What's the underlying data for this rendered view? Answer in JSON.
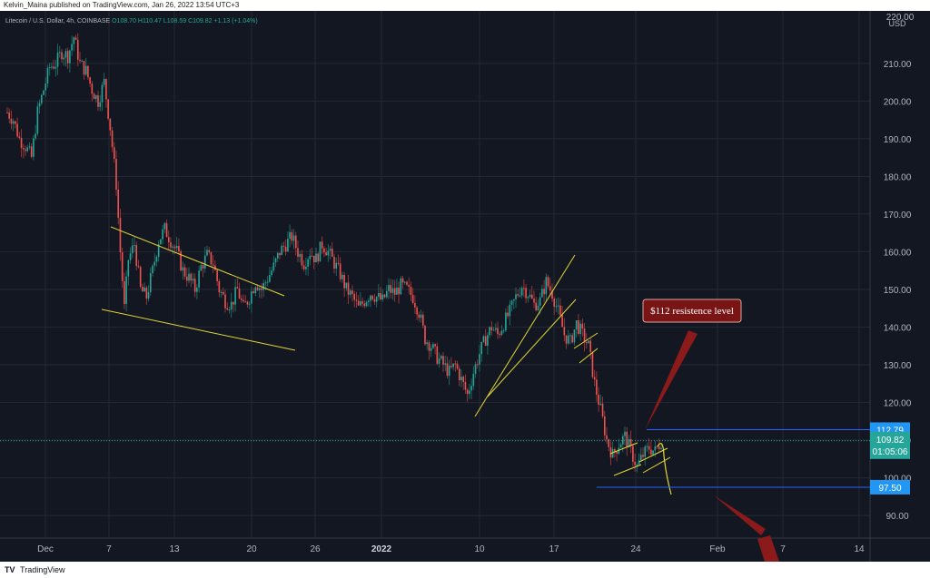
{
  "publisher": "Kelvin_Maina published on TradingView.com, Jan 26, 2022 13:54 UTC+3",
  "footer": {
    "logo": "TV",
    "brand": "TradingView"
  },
  "colors": {
    "background": "#131722",
    "grid": "#242833",
    "up": "#26a69a",
    "down": "#ef5350",
    "wick_up": "#1b7d73",
    "wick_down": "#b63b3b",
    "trendline": "#e3d834",
    "level_line": "#2962ff",
    "callout_fill": "#7a1515",
    "callout_border": "#d9a3a3",
    "arrow": "#8b1a1a",
    "axis_text": "#b2b5be",
    "price_tag_up": "#26a69a",
    "price_tag_level": "#2196f3"
  },
  "chart_data": {
    "type": "candlestick",
    "legend": {
      "symbol": "Litecoin / U.S. Dollar, 4h, COINBASE",
      "open": "O108.70",
      "high": "H110.47",
      "low": "L108.59",
      "close": "C109.82",
      "change": "+1.13 (+1.04%)"
    },
    "currency": "USD",
    "ylim": [
      84,
      222
    ],
    "y_ticks": [
      90,
      100,
      110,
      120,
      130,
      140,
      150,
      160,
      170,
      180,
      190,
      200,
      210
    ],
    "y_tick_labels": [
      "90.00",
      "100.00",
      "110.00",
      "120.00",
      "130.00",
      "140.00",
      "150.00",
      "160.00",
      "170.00",
      "180.00",
      "190.00",
      "200.00",
      "210.00"
    ],
    "top_partial_label": "220.00",
    "x_ticks": [
      "Dec",
      "7",
      "13",
      "20",
      "26",
      "2022",
      "10",
      "17",
      "24",
      "Feb",
      "7",
      "14"
    ],
    "bold_x_ticks": [
      "2022"
    ],
    "price_path": [
      [
        0,
        197
      ],
      [
        3,
        195
      ],
      [
        6,
        190
      ],
      [
        9,
        188
      ],
      [
        12,
        185
      ],
      [
        15,
        197
      ],
      [
        18,
        203
      ],
      [
        21,
        209
      ],
      [
        24,
        210
      ],
      [
        27,
        213
      ],
      [
        30,
        212
      ],
      [
        33,
        217
      ],
      [
        36,
        210
      ],
      [
        39,
        208
      ],
      [
        42,
        203
      ],
      [
        45,
        200
      ],
      [
        48,
        205
      ],
      [
        51,
        193
      ],
      [
        54,
        178
      ],
      [
        56,
        160
      ],
      [
        58,
        145
      ],
      [
        60,
        158
      ],
      [
        63,
        162
      ],
      [
        66,
        150
      ],
      [
        69,
        148
      ],
      [
        72,
        155
      ],
      [
        75,
        163
      ],
      [
        78,
        166
      ],
      [
        81,
        163
      ],
      [
        84,
        160
      ],
      [
        87,
        155
      ],
      [
        90,
        153
      ],
      [
        93,
        150
      ],
      [
        96,
        156
      ],
      [
        99,
        159
      ],
      [
        102,
        157
      ],
      [
        105,
        150
      ],
      [
        108,
        147
      ],
      [
        111,
        146
      ],
      [
        114,
        150
      ],
      [
        117,
        145
      ],
      [
        120,
        148
      ],
      [
        123,
        152
      ],
      [
        126,
        150
      ],
      [
        129,
        153
      ],
      [
        132,
        156
      ],
      [
        135,
        160
      ],
      [
        138,
        162
      ],
      [
        141,
        164
      ],
      [
        144,
        160
      ],
      [
        147,
        157
      ],
      [
        150,
        160
      ],
      [
        153,
        158
      ],
      [
        156,
        162
      ],
      [
        159,
        160
      ],
      [
        162,
        157
      ],
      [
        165,
        154
      ],
      [
        168,
        150
      ],
      [
        171,
        148
      ],
      [
        174,
        145
      ],
      [
        177,
        147
      ],
      [
        180,
        149
      ],
      [
        183,
        148
      ],
      [
        186,
        147
      ],
      [
        189,
        150
      ],
      [
        192,
        149
      ],
      [
        195,
        151
      ],
      [
        198,
        150
      ],
      [
        201,
        148
      ],
      [
        204,
        144
      ],
      [
        207,
        137
      ],
      [
        210,
        135
      ],
      [
        213,
        132
      ],
      [
        216,
        130
      ],
      [
        219,
        128
      ],
      [
        222,
        130
      ],
      [
        225,
        126
      ],
      [
        228,
        122
      ],
      [
        231,
        128
      ],
      [
        234,
        133
      ],
      [
        237,
        137
      ],
      [
        240,
        140
      ],
      [
        243,
        138
      ],
      [
        246,
        141
      ],
      [
        249,
        144
      ],
      [
        252,
        148
      ],
      [
        255,
        151
      ],
      [
        258,
        149
      ],
      [
        261,
        146
      ],
      [
        264,
        147
      ],
      [
        267,
        152
      ],
      [
        270,
        149
      ],
      [
        273,
        144
      ],
      [
        276,
        138
      ],
      [
        279,
        136
      ],
      [
        282,
        141
      ],
      [
        285,
        138
      ],
      [
        288,
        135
      ],
      [
        291,
        125
      ],
      [
        294,
        118
      ],
      [
        297,
        110
      ],
      [
        300,
        106
      ],
      [
        303,
        109
      ],
      [
        306,
        111
      ],
      [
        309,
        107
      ],
      [
        312,
        103
      ],
      [
        315,
        106
      ],
      [
        318,
        108
      ],
      [
        321,
        107
      ],
      [
        324,
        109.82
      ]
    ],
    "levels": [
      {
        "value": 112.79,
        "label": "112.79"
      },
      {
        "value": 97.5,
        "label": "97.50"
      }
    ],
    "last_price": {
      "value": 109.82,
      "label": "109.82",
      "countdown": "01:05:06"
    },
    "annotations": [
      {
        "text": "$112 resistence level"
      }
    ]
  }
}
